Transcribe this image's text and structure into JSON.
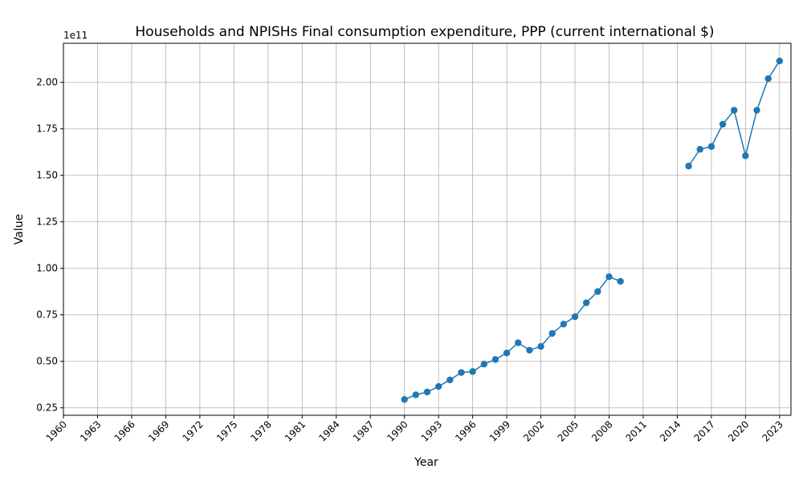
{
  "chart_data": {
    "type": "line",
    "title": "Households and NPISHs Final consumption expenditure, PPP (current international $)",
    "xlabel": "Year",
    "ylabel": "Value",
    "y_offset_label": "1e11",
    "xlim": [
      1960,
      2024
    ],
    "ylim": [
      21000000000.0,
      221000000000.0
    ],
    "grid": true,
    "x_ticks": [
      1960,
      1963,
      1966,
      1969,
      1972,
      1975,
      1978,
      1981,
      1984,
      1987,
      1990,
      1993,
      1996,
      1999,
      2002,
      2005,
      2008,
      2011,
      2014,
      2017,
      2020,
      2023
    ],
    "y_ticks": [
      25000000000.0,
      50000000000.0,
      75000000000.0,
      100000000000.0,
      125000000000.0,
      150000000000.0,
      175000000000.0,
      200000000000.0
    ],
    "y_tick_labels": [
      "0.25",
      "0.50",
      "0.75",
      "1.00",
      "1.25",
      "1.50",
      "1.75",
      "2.00"
    ],
    "series": [
      {
        "color": "#1f77b4",
        "segments": [
          {
            "x": [
              1990,
              1991,
              1992,
              1993,
              1994,
              1995,
              1996,
              1997,
              1998,
              1999,
              2000,
              2001,
              2002,
              2003,
              2004,
              2005,
              2006,
              2007,
              2008,
              2009
            ],
            "y": [
              29500000000.0,
              32000000000.0,
              33500000000.0,
              36500000000.0,
              40000000000.0,
              44000000000.0,
              44500000000.0,
              48500000000.0,
              51000000000.0,
              54500000000.0,
              60000000000.0,
              56000000000.0,
              58000000000.0,
              65000000000.0,
              70000000000.0,
              74000000000.0,
              81500000000.0,
              87500000000.0,
              95500000000.0,
              93000000000.0
            ]
          },
          {
            "x": [
              2015,
              2016,
              2017,
              2018,
              2019,
              2020,
              2021,
              2022,
              2023
            ],
            "y": [
              155000000000.0,
              164000000000.0,
              165500000000.0,
              177500000000.0,
              185000000000.0,
              160500000000.0,
              185000000000.0,
              202000000000.0,
              211500000000.0
            ]
          }
        ]
      }
    ]
  }
}
